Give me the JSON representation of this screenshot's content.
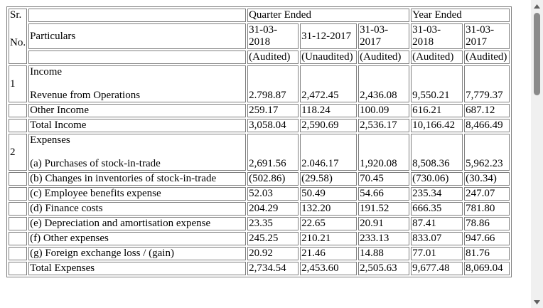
{
  "header": {
    "sr_line1": "Sr.",
    "sr_line2": "No.",
    "particulars": "Particulars",
    "quarter_ended": "Quarter Ended",
    "year_ended": "Year Ended",
    "dates": [
      "31-03-2018",
      "31-12-2017",
      "31-03-2017",
      "31-03-2018",
      "31-03-2017"
    ],
    "statuses": [
      "(Audited)",
      "(Unaudited)",
      "(Audited)",
      "(Audited)",
      "(Audited)"
    ]
  },
  "income": {
    "sr": "1",
    "heading": "Income",
    "rows": [
      {
        "label": "Revenue from Operations",
        "values": [
          "2.798.87",
          "2,472.45",
          "2,436.08",
          "9,550.21",
          "7,779.37"
        ]
      },
      {
        "label": "Other Income",
        "values": [
          "259.17",
          "118.24",
          "100.09",
          "616.21",
          "687.12"
        ]
      },
      {
        "label": "Total Income",
        "values": [
          "3,058.04",
          "2,590.69",
          "2,536.17",
          "10,166.42",
          "8,466.49"
        ]
      }
    ]
  },
  "expenses": {
    "sr": "2",
    "heading": "Expenses",
    "rows": [
      {
        "label": "(a) Purchases of stock-in-trade",
        "values": [
          "2,691.56",
          "2.046.17",
          "1,920.08",
          "8,508.36",
          "5,962.23"
        ]
      },
      {
        "label": "(b) Changes in inventories of stock-in-trade",
        "values": [
          "(502.86)",
          "(29.58)",
          "70.45",
          "(730.06)",
          "(30.34)"
        ]
      },
      {
        "label": "(c) Employee benefits expense",
        "values": [
          "52.03",
          "50.49",
          "54.66",
          "235.34",
          "247.07"
        ]
      },
      {
        "label": "(d) Finance costs",
        "values": [
          "204.29",
          "132.20",
          "191.52",
          "666.35",
          "781.80"
        ]
      },
      {
        "label": "(e) Depreciation and amortisation expense",
        "values": [
          "23.35",
          "22.65",
          "20.91",
          "87.41",
          "78.86"
        ]
      },
      {
        "label": "(f) Other expenses",
        "values": [
          "245.25",
          "210.21",
          "233.13",
          "833.07",
          "947.66"
        ]
      },
      {
        "label": "(g) Foreign exchange loss / (gain)",
        "values": [
          "20.92",
          "21.46",
          "14.88",
          "77.01",
          "81.76"
        ]
      },
      {
        "label": "Total Expenses",
        "values": [
          "2,734.54",
          "2,453.60",
          "2,505.63",
          "9,677.48",
          "8,069.04"
        ]
      }
    ]
  },
  "scrollbar": {
    "position": 0.0
  }
}
